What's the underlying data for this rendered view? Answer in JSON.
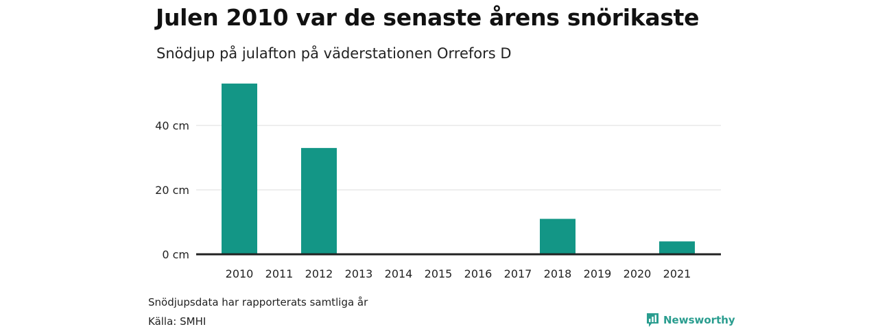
{
  "title": "Julen 2010 var de senaste årens snörikaste",
  "subtitle": "Snödjup på julafton på väderstationen Orrefors D",
  "footer": {
    "note": "Snödjupsdata har rapporterats samtliga år",
    "source": "Källa: SMHI",
    "brand": "Newsworthy",
    "brand_icon": "bar-chart-speech-icon"
  },
  "colors": {
    "bar": "#139686",
    "brand": "#2a9d8f",
    "grid": "#dddddd",
    "axis": "#222222"
  },
  "chart_data": {
    "type": "bar",
    "categories": [
      "2010",
      "2011",
      "2012",
      "2013",
      "2014",
      "2015",
      "2016",
      "2017",
      "2018",
      "2019",
      "2020",
      "2021"
    ],
    "values": [
      53,
      0,
      33,
      0,
      0,
      0,
      0,
      0,
      11,
      0,
      0,
      4
    ],
    "ylim": [
      0,
      60
    ],
    "yticks": [
      0,
      20,
      40
    ],
    "ytick_labels": [
      "0 cm",
      "20 cm",
      "40 cm"
    ],
    "xlabel": "",
    "ylabel": "",
    "grid": true,
    "legend": false
  }
}
